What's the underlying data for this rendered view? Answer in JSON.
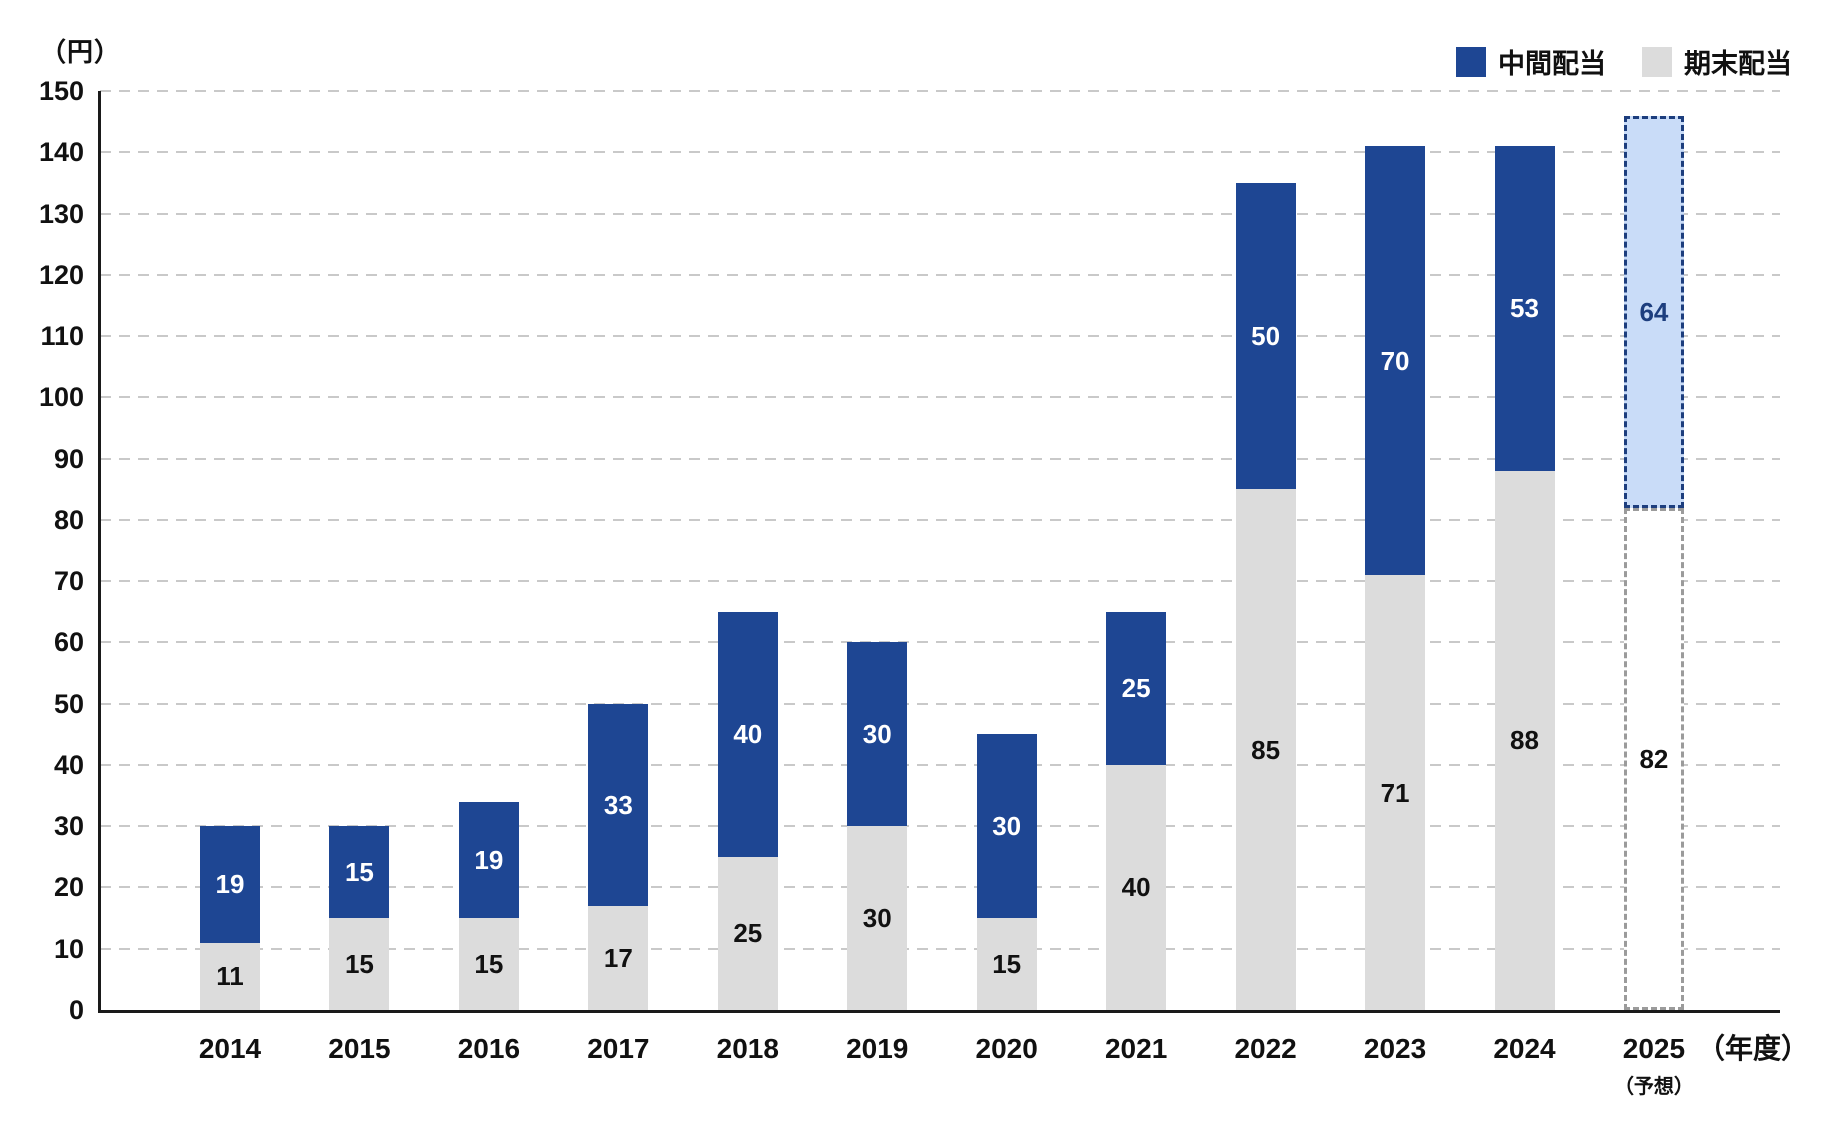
{
  "chart": {
    "unit_label": "（円）",
    "x_axis_unit_label": "（年度）",
    "forecast_note": "（予想）",
    "legend": [
      {
        "label": "中間配当",
        "color": "#1e4693"
      },
      {
        "label": "期末配当",
        "color": "#dcdcdc"
      }
    ],
    "colors": {
      "interim_fill": "#1e4693",
      "yearend_fill": "#dcdcdc",
      "interim_label": "#ffffff",
      "yearend_label": "#111111",
      "forecast_interim_fill": "#c9dcf8",
      "forecast_interim_border": "#1d3e7e",
      "forecast_interim_label": "#1d3e7e",
      "forecast_yearend_fill": "#ffffff",
      "forecast_yearend_border": "#9b9b9b",
      "forecast_yearend_label": "#111111",
      "gridline": "#c9c9c9",
      "axis": "#1a1a1a"
    }
  },
  "chart_data": {
    "type": "bar",
    "stacked": true,
    "title": "",
    "categories": [
      "2014",
      "2015",
      "2016",
      "2017",
      "2018",
      "2019",
      "2020",
      "2021",
      "2022",
      "2023",
      "2024",
      "2025"
    ],
    "series": [
      {
        "name": "期末配当",
        "values": [
          11,
          15,
          15,
          17,
          25,
          30,
          15,
          40,
          85,
          71,
          88,
          82
        ]
      },
      {
        "name": "中間配当",
        "values": [
          19,
          15,
          19,
          33,
          40,
          30,
          30,
          25,
          50,
          70,
          53,
          64
        ]
      }
    ],
    "totals": [
      30,
      30,
      34,
      50,
      65,
      60,
      45,
      65,
      135,
      141,
      141,
      146
    ],
    "ylabel": "（円）",
    "xlabel": "（年度）",
    "ylim": [
      0,
      150
    ],
    "ytick_step": 10,
    "y_ticks": [
      0,
      10,
      20,
      30,
      40,
      50,
      60,
      70,
      80,
      90,
      100,
      110,
      120,
      130,
      140,
      150
    ],
    "grid": "horizontal-dashed",
    "legend_position": "top-right",
    "forecast_category": "2025",
    "forecast_note": "（予想）",
    "forecast_index": 11
  }
}
